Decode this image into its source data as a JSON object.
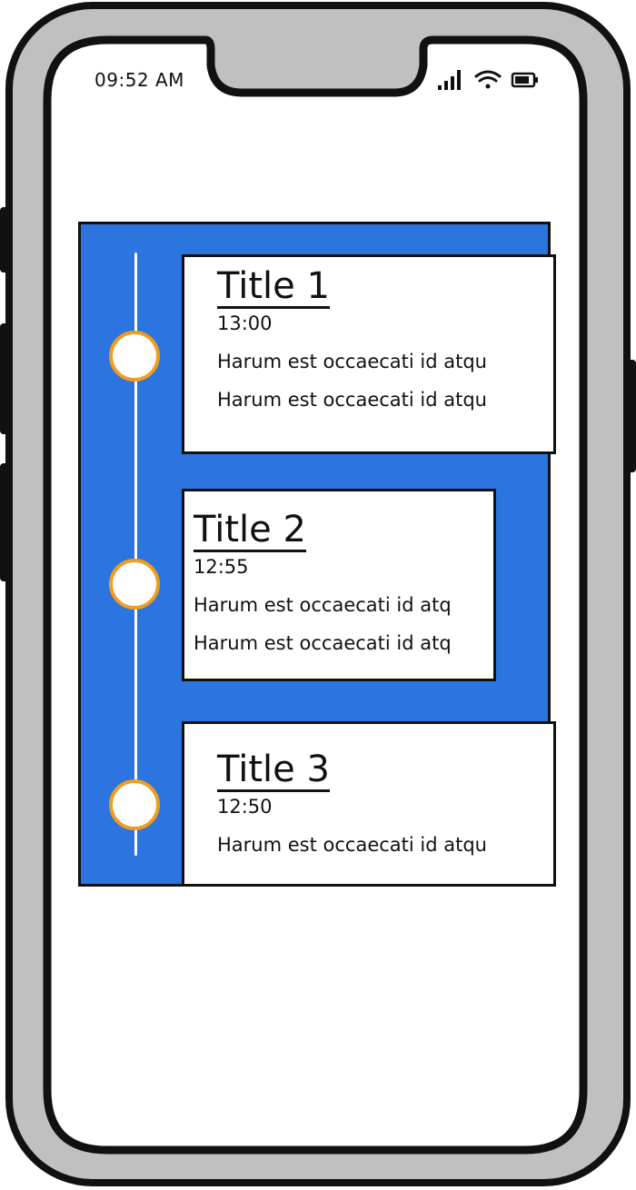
{
  "status_bar": {
    "time": "09:52 AM",
    "icons": [
      "signal-icon",
      "wifi-icon",
      "battery-icon"
    ]
  },
  "colors": {
    "panel": "#2c74e0",
    "node_ring": "#f29c1e",
    "frame": "#c0c0c0"
  },
  "timeline": {
    "items": [
      {
        "title": "Title 1",
        "time": "13:00",
        "lines": [
          "Harum est occaecati id atqu",
          "Harum est occaecati id atqu"
        ]
      },
      {
        "title": "Title 2",
        "time": "12:55",
        "lines": [
          "Harum est occaecati id atq",
          "Harum est occaecati id atq"
        ]
      },
      {
        "title": "Title 3",
        "time": "12:50",
        "lines": [
          "Harum est occaecati id atqu"
        ]
      }
    ]
  }
}
